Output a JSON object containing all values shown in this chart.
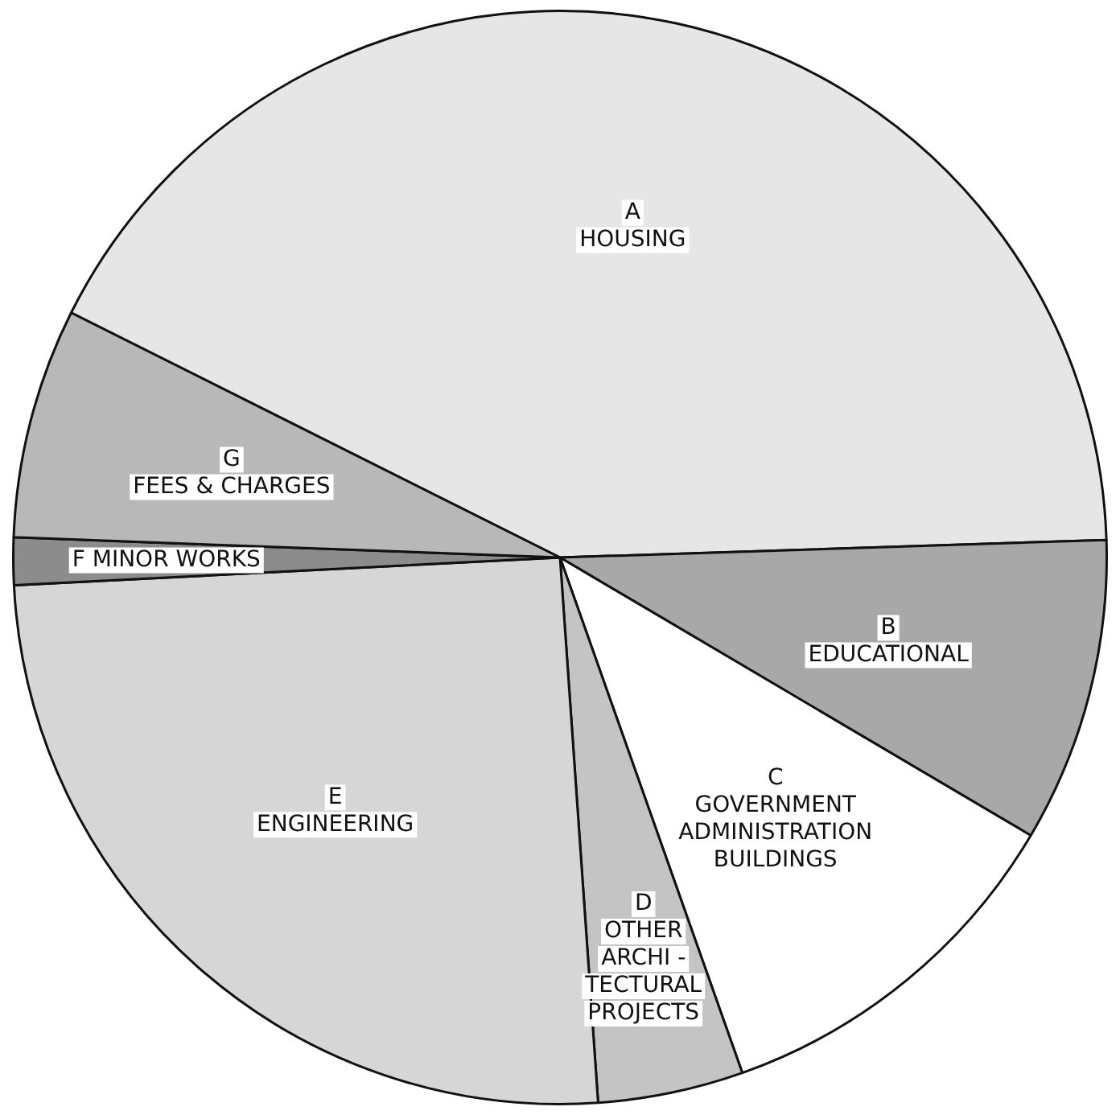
{
  "chart_data": {
    "type": "pie",
    "categories": [
      "A\nHOUSING",
      "B\nEDUCATIONAL",
      "C\nGOVERNMENT\nADMINISTRATION\nBUILDINGS",
      "D\nOTHER\nARCHI -\nTECTURAL\nPROJECTS",
      "E\nENGINEERING",
      "F MINOR WORKS",
      "G\nFEES & CHARGES"
    ],
    "values": [
      42.1,
      9.0,
      11.1,
      4.3,
      25.3,
      1.4,
      6.8
    ],
    "colors": [
      "#e6e6e6",
      "#a8a8a8",
      "#ffffff",
      "#c4c4c4",
      "#d6d6d6",
      "#8c8c8c",
      "#b8b8b8"
    ],
    "legend": false
  }
}
